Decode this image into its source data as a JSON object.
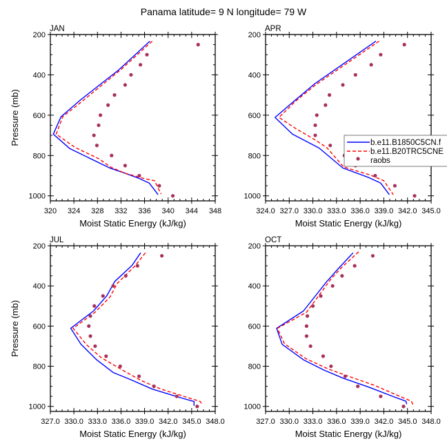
{
  "chart_data": {
    "type": "line",
    "title": "Panama  latitude= 9 N longitude= 79 W",
    "legend": {
      "placement": "inside APR panel, right side",
      "entries": [
        "b.e11.B1850C5CN.f",
        "b.e11.B20TRC5CNE",
        "raobs"
      ]
    },
    "colors": {
      "model1": "#0000ff",
      "model2": "#ff0000",
      "raobs": "#a8315a"
    },
    "panels": [
      {
        "label": "JAN",
        "xlabel": "Moist Static Energy (kJ/kg)",
        "ylabel": "Pressure (mb)",
        "xlim": [
          320,
          348
        ],
        "xticks": [
          320,
          324,
          328,
          332,
          336,
          340,
          344,
          348
        ],
        "xtick_labels": [
          "320",
          "324",
          "328",
          "332",
          "336",
          "340",
          "344",
          "348"
        ],
        "ylim": [
          200,
          1025
        ],
        "yticks": [
          200,
          400,
          600,
          800,
          1000
        ],
        "ytick_labels": [
          "200",
          "400",
          "600",
          "800",
          "1000"
        ],
        "series": [
          {
            "name": "b.e11.B1850C5CN.f",
            "style": "solid",
            "x": [
              336.9,
              331.6,
              325.1,
              321.8,
              320.5,
              323.3,
              330.1,
              332.6,
              335.1,
              336.8,
              338.3
            ],
            "p": [
              233,
              376,
              525,
              608,
              694,
              766,
              862,
              887,
              914,
              937,
              994
            ]
          },
          {
            "name": "b.e11.B20TRC5CNE",
            "style": "dashed",
            "x": [
              337.3,
              331.9,
              325.4,
              322.1,
              321.0,
              324.2,
              328.3,
              330.2,
              332.6,
              335.9,
              337.7,
              338.8
            ],
            "p": [
              233,
              376,
              531,
              608,
              694,
              760,
              817,
              857,
              887,
              914,
              925,
              991
            ]
          },
          {
            "name": "raobs",
            "style": "markers",
            "x": [
              345.1,
              336.4,
              335.3,
              333.7,
              332.7,
              330.9,
              329.8,
              328.5,
              328.2,
              327.4,
              327.9,
              330.4,
              332.7,
              335.1,
              338.5,
              340.8
            ],
            "p": [
              250,
              300,
              350,
              400,
              450,
              500,
              550,
              600,
              650,
              700,
              750,
              800,
              850,
              900,
              950,
              1000
            ]
          }
        ]
      },
      {
        "label": "APR",
        "xlabel": "Moist Static Energy (kJ/kg)",
        "ylabel": "",
        "xlim": [
          324,
          345
        ],
        "xticks": [
          324,
          327,
          330,
          333,
          336,
          339,
          342,
          345
        ],
        "xtick_labels": [
          "324.0",
          "327.0",
          "330.0",
          "333.0",
          "336.0",
          "339.0",
          "342.0",
          "345.0"
        ],
        "ylim": [
          200,
          1025
        ],
        "yticks": [
          200,
          400,
          600,
          800,
          1000
        ],
        "ytick_labels": [
          "200",
          "400",
          "600",
          "800",
          "1000"
        ],
        "series": [
          {
            "name": "b.e11.B1850C5CN.f",
            "style": "solid",
            "x": [
              338.0,
              330.2,
              327.6,
              325.2,
              327.4,
              330.8,
              333.8,
              337.0,
              338.6,
              339.7
            ],
            "p": [
              233,
              445,
              531,
              611,
              694,
              763,
              862,
              908,
              937,
              994
            ]
          },
          {
            "name": "b.e11.B20TRC5CNE",
            "style": "dashed",
            "x": [
              338.4,
              330.3,
              327.8,
              325.7,
              327.9,
              330.4,
              331.8,
              333.9,
              337.3,
              339.0,
              340.2
            ],
            "p": [
              233,
              451,
              531,
              611,
              668,
              725,
              762,
              857,
              897,
              925,
              994
            ]
          },
          {
            "name": "raobs",
            "style": "markers",
            "x": [
              341.6,
              338.6,
              337.4,
              335.4,
              333.8,
              332.1,
              331.6,
              330.5,
              330.3,
              330.3,
              332.2,
              334.0,
              335.4,
              337.9,
              340.4,
              342.9
            ],
            "p": [
              250,
              300,
              350,
              400,
              450,
              500,
              550,
              600,
              650,
              700,
              750,
              800,
              850,
              900,
              950,
              1000
            ]
          }
        ]
      },
      {
        "label": "JUL",
        "xlabel": "Moist Static Energy (kJ/kg)",
        "ylabel": "Pressure (mb)",
        "xlim": [
          327,
          348
        ],
        "xticks": [
          327,
          330,
          333,
          336,
          339,
          342,
          345,
          348
        ],
        "xtick_labels": [
          "327.0",
          "330.0",
          "333.0",
          "336.0",
          "339.0",
          "342.0",
          "345.0",
          "348.0"
        ],
        "ylim": [
          200,
          1025
        ],
        "yticks": [
          200,
          400,
          600,
          800,
          1000
        ],
        "ytick_labels": [
          "200",
          "400",
          "600",
          "800",
          "1000"
        ],
        "series": [
          {
            "name": "b.e11.B1850C5CN.f",
            "style": "solid",
            "x": [
              338.5,
              337.4,
              335.2,
              334.2,
              332.5,
              329.6,
              330.9,
              332.9,
              335.0,
              337.0,
              340.0,
              343.1,
              345.3,
              345.3
            ],
            "p": [
              235,
              298,
              378,
              449,
              525,
              611,
              691,
              768,
              831,
              863,
              914,
              951,
              976,
              997
            ]
          },
          {
            "name": "b.e11.B20TRC5CNE",
            "style": "dashed",
            "x": [
              339.1,
              337.8,
              335.5,
              334.6,
              332.7,
              329.9,
              331.6,
              333.5,
              336.4,
              338.5,
              341.1,
              343.3,
              346.1,
              346.3
            ],
            "p": [
              235,
              300,
              388,
              455,
              531,
              611,
              693,
              758,
              824,
              870,
              914,
              941,
              976,
              991
            ]
          },
          {
            "name": "raobs",
            "style": "markers",
            "x": [
              341.2,
              338.1,
              336.6,
              335.0,
              333.7,
              332.6,
              332.1,
              331.9,
              332.1,
              332.7,
              334.1,
              335.9,
              338.3,
              340.2,
              343.1,
              345.7
            ],
            "p": [
              250,
              300,
              350,
              400,
              450,
              500,
              550,
              600,
              650,
              700,
              750,
              800,
              850,
              900,
              950,
              1000
            ]
          }
        ]
      },
      {
        "label": "OCT",
        "xlabel": "Moist Static Energy (kJ/kg)",
        "ylabel": "",
        "xlim": [
          327,
          348
        ],
        "xticks": [
          327,
          330,
          333,
          336,
          339,
          342,
          345,
          348
        ],
        "xtick_labels": [
          "327.0",
          "330.0",
          "333.0",
          "336.0",
          "339.0",
          "342.0",
          "345.0",
          "348.0"
        ],
        "ylim": [
          200,
          1025
        ],
        "yticks": [
          200,
          400,
          600,
          800,
          1000
        ],
        "ytick_labels": [
          "200",
          "400",
          "600",
          "800",
          "1000"
        ],
        "series": [
          {
            "name": "b.e11.B1850C5CN.f",
            "style": "solid",
            "x": [
              338.1,
              336.2,
              334.7,
              331.8,
              328.4,
              329.1,
              331.8,
              334.4,
              336.8,
              340.3,
              343.2,
              344.8,
              344.9
            ],
            "p": [
              235,
              315,
              381,
              525,
              611,
              691,
              768,
              819,
              859,
              907,
              951,
              974,
              989
            ]
          },
          {
            "name": "b.e11.B20TRC5CNE",
            "style": "dashed",
            "x": [
              338.8,
              336.6,
              335.3,
              332.2,
              328.5,
              329.4,
              332.1,
              334.9,
              337.3,
              340.8,
              344.1,
              345.5,
              345.7
            ],
            "p": [
              230,
              310,
              365,
              531,
              611,
              688,
              762,
              813,
              847,
              895,
              951,
              974,
              991
            ]
          },
          {
            "name": "raobs",
            "style": "markers",
            "x": [
              340.6,
              338.3,
              336.7,
              335.5,
              334.0,
              333.0,
              332.3,
              332.2,
              332.2,
              332.7,
              334.3,
              335.3,
              337.1,
              338.7,
              341.6,
              344.5
            ],
            "p": [
              250,
              300,
              350,
              400,
              450,
              500,
              550,
              600,
              650,
              700,
              750,
              800,
              850,
              900,
              950,
              1000
            ]
          }
        ]
      }
    ]
  }
}
